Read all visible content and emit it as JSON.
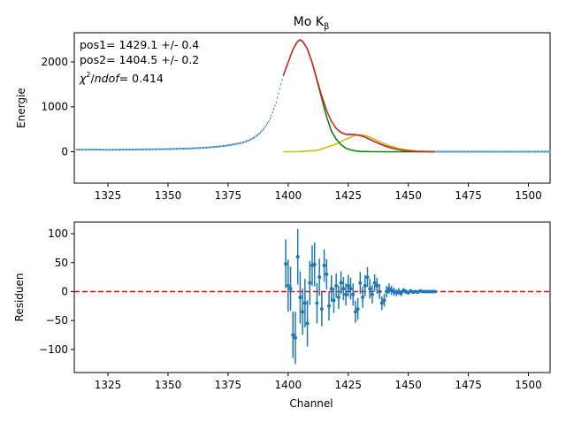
{
  "chart_data": [
    {
      "type": "scatter",
      "title": "Mo K",
      "title_subscript": "β",
      "xlabel": "",
      "ylabel": "Energie",
      "xlim": [
        1311,
        1509
      ],
      "ylim": [
        -700,
        2650
      ],
      "xticks": [
        "1325",
        "1350",
        "1375",
        "1400",
        "1425",
        "1450",
        "1475",
        "1500"
      ],
      "yticks": [
        "0",
        "1000",
        "2000"
      ],
      "annotations": [
        "pos1= 1429.1 +/- 0.4",
        "pos2= 1404.5 +/- 0.2",
        "/ndof= 0.414"
      ],
      "annotation_chi": "χ",
      "annotation_chi_sup": "2",
      "annotation_ndof": "ndof",
      "data_points": {
        "x": [
          1312,
          1316,
          1320,
          1324,
          1328,
          1332,
          1336,
          1340,
          1344,
          1348,
          1352,
          1356,
          1360,
          1364,
          1368,
          1372,
          1376,
          1380,
          1382,
          1384,
          1386,
          1388,
          1390,
          1392,
          1393,
          1394,
          1395,
          1396,
          1397,
          1398,
          1399,
          1400,
          1401,
          1402,
          1403,
          1404,
          1405,
          1406,
          1407,
          1408,
          1409,
          1410,
          1411,
          1412,
          1413,
          1414,
          1415,
          1416,
          1417,
          1418,
          1419,
          1420,
          1421,
          1422,
          1423,
          1424,
          1425,
          1426,
          1427,
          1428,
          1429,
          1430,
          1431,
          1432,
          1433,
          1434,
          1435,
          1436,
          1437,
          1438,
          1439,
          1440,
          1441,
          1442,
          1443,
          1444,
          1445,
          1446,
          1447,
          1448,
          1449,
          1450,
          1451,
          1452,
          1453,
          1454,
          1455,
          1456,
          1457,
          1458,
          1459,
          1460,
          1465,
          1470,
          1475,
          1480,
          1485,
          1490,
          1495,
          1500,
          1505,
          1509
        ],
        "y": [
          50,
          45,
          50,
          42,
          45,
          48,
          50,
          52,
          55,
          58,
          62,
          68,
          75,
          85,
          100,
          120,
          150,
          190,
          220,
          260,
          320,
          400,
          520,
          680,
          800,
          950,
          1100,
          1300,
          1500,
          1700,
          1850,
          1990,
          2140,
          2280,
          2390,
          2460,
          2490,
          2460,
          2400,
          2290,
          2150,
          1980,
          1800,
          1610,
          1420,
          1240,
          1070,
          920,
          790,
          680,
          590,
          520,
          470,
          430,
          405,
          390,
          385,
          385,
          385,
          380,
          372,
          360,
          345,
          325,
          300,
          275,
          250,
          225,
          200,
          178,
          155,
          135,
          117,
          100,
          85,
          72,
          60,
          50,
          41,
          34,
          28,
          22,
          18,
          14,
          11,
          8,
          6,
          5,
          4,
          3,
          2,
          2,
          1,
          1,
          1,
          1,
          1,
          1,
          1,
          1,
          1,
          1
        ]
      },
      "fit_total": {
        "x": [
          1398,
          1400,
          1402,
          1404,
          1405,
          1406,
          1408,
          1410,
          1412,
          1414,
          1416,
          1418,
          1420,
          1422,
          1424,
          1426,
          1428,
          1430,
          1432,
          1434,
          1436,
          1438,
          1440,
          1442,
          1444,
          1446,
          1448,
          1450,
          1452,
          1454,
          1456,
          1458,
          1460,
          1461
        ],
        "y": [
          1700,
          1990,
          2280,
          2460,
          2490,
          2460,
          2290,
          1980,
          1610,
          1240,
          920,
          680,
          520,
          430,
          390,
          385,
          380,
          360,
          325,
          275,
          225,
          178,
          135,
          100,
          72,
          50,
          34,
          22,
          14,
          8,
          5,
          3,
          2,
          1
        ]
      },
      "fit_peak1": {
        "x": [
          1398,
          1404,
          1412,
          1420,
          1424,
          1428,
          1430,
          1432,
          1434,
          1438,
          1442,
          1446,
          1450,
          1454,
          1458,
          1461
        ],
        "y": [
          0,
          3,
          30,
          170,
          280,
          365,
          380,
          365,
          325,
          225,
          135,
          72,
          34,
          14,
          5,
          2
        ]
      },
      "fit_peak2": {
        "x": [
          1398,
          1400,
          1402,
          1404,
          1405,
          1406,
          1408,
          1410,
          1412,
          1414,
          1416,
          1418,
          1420,
          1422,
          1424,
          1426,
          1428,
          1430,
          1434,
          1440,
          1461
        ],
        "y": [
          1700,
          1990,
          2280,
          2460,
          2490,
          2460,
          2290,
          1980,
          1580,
          1180,
          780,
          460,
          280,
          160,
          80,
          40,
          20,
          8,
          2,
          0,
          0
        ]
      },
      "colors": {
        "data": "#1f77b4",
        "fit_total": "#d62728",
        "fit_peak1": "#bfbf00",
        "fit_peak2": "#008000"
      }
    },
    {
      "type": "scatter",
      "xlabel": "Channel",
      "ylabel": "Residuen",
      "xlim": [
        1311,
        1509
      ],
      "ylim": [
        -140,
        120
      ],
      "xticks": [
        "1325",
        "1350",
        "1375",
        "1400",
        "1425",
        "1450",
        "1475",
        "1500"
      ],
      "yticks": [
        "−100",
        "−50",
        "0",
        "50",
        "100"
      ],
      "reference_line": {
        "y": 0,
        "color": "#ff0000",
        "style": "dashed"
      },
      "color": "#1f77b4",
      "residuals": [
        {
          "x": 1399,
          "y": 48,
          "err": 42
        },
        {
          "x": 1400,
          "y": 10,
          "err": 45
        },
        {
          "x": 1401,
          "y": 5,
          "err": 38
        },
        {
          "x": 1402,
          "y": -75,
          "err": 40
        },
        {
          "x": 1403,
          "y": -80,
          "err": 45
        },
        {
          "x": 1404,
          "y": 60,
          "err": 48
        },
        {
          "x": 1405,
          "y": -10,
          "err": 45
        },
        {
          "x": 1406,
          "y": -35,
          "err": 40
        },
        {
          "x": 1407,
          "y": -20,
          "err": 42
        },
        {
          "x": 1408,
          "y": -55,
          "err": 40
        },
        {
          "x": 1409,
          "y": 15,
          "err": 38
        },
        {
          "x": 1410,
          "y": 45,
          "err": 35
        },
        {
          "x": 1411,
          "y": 47,
          "err": 38
        },
        {
          "x": 1412,
          "y": -20,
          "err": 35
        },
        {
          "x": 1413,
          "y": 25,
          "err": 32
        },
        {
          "x": 1414,
          "y": -30,
          "err": 30
        },
        {
          "x": 1415,
          "y": 45,
          "err": 28
        },
        {
          "x": 1416,
          "y": 30,
          "err": 26
        },
        {
          "x": 1417,
          "y": -25,
          "err": 25
        },
        {
          "x": 1418,
          "y": 5,
          "err": 23
        },
        {
          "x": 1419,
          "y": -15,
          "err": 22
        },
        {
          "x": 1420,
          "y": 10,
          "err": 21
        },
        {
          "x": 1421,
          "y": -10,
          "err": 20
        },
        {
          "x": 1422,
          "y": 15,
          "err": 20
        },
        {
          "x": 1423,
          "y": 5,
          "err": 20
        },
        {
          "x": 1424,
          "y": -5,
          "err": 19
        },
        {
          "x": 1425,
          "y": 10,
          "err": 19
        },
        {
          "x": 1426,
          "y": 5,
          "err": 19
        },
        {
          "x": 1427,
          "y": -5,
          "err": 19
        },
        {
          "x": 1428,
          "y": -35,
          "err": 19
        },
        {
          "x": 1429,
          "y": -30,
          "err": 19
        },
        {
          "x": 1430,
          "y": 15,
          "err": 19
        },
        {
          "x": 1431,
          "y": -10,
          "err": 18
        },
        {
          "x": 1432,
          "y": 10,
          "err": 18
        },
        {
          "x": 1433,
          "y": 25,
          "err": 17
        },
        {
          "x": 1434,
          "y": 5,
          "err": 17
        },
        {
          "x": 1435,
          "y": -5,
          "err": 16
        },
        {
          "x": 1436,
          "y": 15,
          "err": 15
        },
        {
          "x": 1437,
          "y": 10,
          "err": 14
        },
        {
          "x": 1438,
          "y": 0,
          "err": 13
        },
        {
          "x": 1439,
          "y": -20,
          "err": 12
        },
        {
          "x": 1440,
          "y": -15,
          "err": 11
        },
        {
          "x": 1441,
          "y": 0,
          "err": 10
        },
        {
          "x": 1442,
          "y": 5,
          "err": 9
        },
        {
          "x": 1443,
          "y": 2,
          "err": 8
        },
        {
          "x": 1444,
          "y": 0,
          "err": 7
        },
        {
          "x": 1445,
          "y": -2,
          "err": 6
        },
        {
          "x": 1446,
          "y": 0,
          "err": 6
        },
        {
          "x": 1447,
          "y": -3,
          "err": 5
        },
        {
          "x": 1448,
          "y": 2,
          "err": 4
        },
        {
          "x": 1449,
          "y": 0,
          "err": 4
        },
        {
          "x": 1450,
          "y": -2,
          "err": 3
        },
        {
          "x": 1451,
          "y": 1,
          "err": 3
        },
        {
          "x": 1452,
          "y": -1,
          "err": 3
        },
        {
          "x": 1453,
          "y": 0,
          "err": 2
        },
        {
          "x": 1454,
          "y": -1,
          "err": 2
        },
        {
          "x": 1455,
          "y": 1,
          "err": 2
        },
        {
          "x": 1456,
          "y": 0,
          "err": 2
        },
        {
          "x": 1457,
          "y": 0,
          "err": 2
        },
        {
          "x": 1458,
          "y": 0,
          "err": 1
        },
        {
          "x": 1459,
          "y": 0,
          "err": 1
        },
        {
          "x": 1460,
          "y": 0,
          "err": 1
        },
        {
          "x": 1461,
          "y": 0,
          "err": 1
        }
      ]
    }
  ]
}
